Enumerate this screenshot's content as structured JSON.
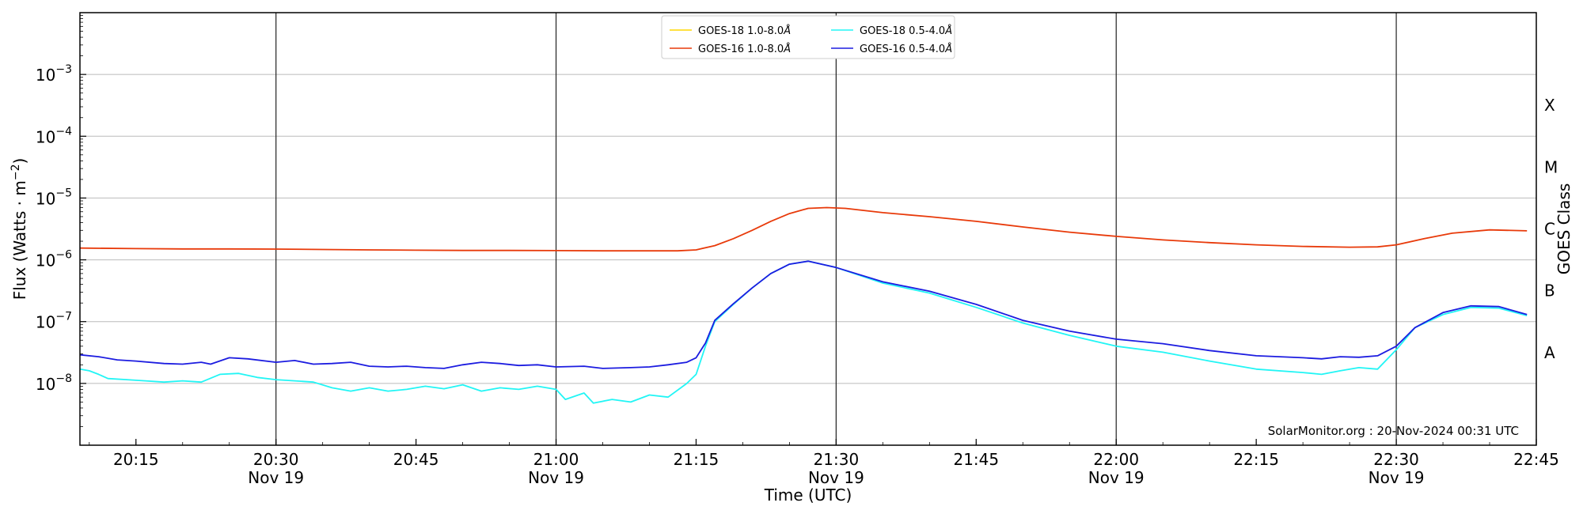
{
  "chart_data": {
    "type": "line",
    "xlabel": "Time (UTC)",
    "ylabel": "Flux (Watts · m",
    "ylabel_sup": "−2",
    "ylabel_close": ")",
    "y2label": "GOES Class",
    "yscale": "log",
    "xlim": [
      "20:09",
      "22:45"
    ],
    "ylim": [
      1e-09,
      0.01
    ],
    "grid": "horizontal",
    "legend_placement": "top-center",
    "annotation": "SolarMonitor.org : 20-Nov-2024 00:31 UTC",
    "x_ticks": [
      {
        "time": "20:15",
        "label": "20:15",
        "sublabel": ""
      },
      {
        "time": "20:30",
        "label": "20:30",
        "sublabel": "Nov 19"
      },
      {
        "time": "20:45",
        "label": "20:45",
        "sublabel": ""
      },
      {
        "time": "21:00",
        "label": "21:00",
        "sublabel": "Nov 19"
      },
      {
        "time": "21:15",
        "label": "21:15",
        "sublabel": ""
      },
      {
        "time": "21:30",
        "label": "21:30",
        "sublabel": "Nov 19"
      },
      {
        "time": "21:45",
        "label": "21:45",
        "sublabel": ""
      },
      {
        "time": "22:00",
        "label": "22:00",
        "sublabel": "Nov 19"
      },
      {
        "time": "22:15",
        "label": "22:15",
        "sublabel": ""
      },
      {
        "time": "22:30",
        "label": "22:30",
        "sublabel": "Nov 19"
      },
      {
        "time": "22:45",
        "label": "22:45",
        "sublabel": ""
      }
    ],
    "vertical_lines": [
      "20:30",
      "21:00",
      "21:30",
      "22:00",
      "22:30"
    ],
    "y_ticks": [
      {
        "value": 1e-08,
        "base": "10",
        "exp": "−8"
      },
      {
        "value": 1e-07,
        "base": "10",
        "exp": "−7"
      },
      {
        "value": 1e-06,
        "base": "10",
        "exp": "−6"
      },
      {
        "value": 1e-05,
        "base": "10",
        "exp": "−5"
      },
      {
        "value": 0.0001,
        "base": "10",
        "exp": "−4"
      },
      {
        "value": 0.001,
        "base": "10",
        "exp": "−3"
      }
    ],
    "goes_classes": [
      {
        "label": "A",
        "value": 1e-08
      },
      {
        "label": "B",
        "value": 1e-07
      },
      {
        "label": "C",
        "value": 1e-06
      },
      {
        "label": "M",
        "value": 1e-05
      },
      {
        "label": "X",
        "value": 0.0001
      }
    ],
    "legend": [
      {
        "name": "GOES-18 1.0-8.0",
        "unit": "Å",
        "color": "#ffd700"
      },
      {
        "name": "GOES-16 1.0-8.0",
        "unit": "Å",
        "color": "#e83a0a"
      },
      {
        "name": "GOES-18 0.5-4.0",
        "unit": "Å",
        "color": "#22f5f5"
      },
      {
        "name": "GOES-16 0.5-4.0",
        "unit": "Å",
        "color": "#1c1ce0"
      }
    ],
    "series": [
      {
        "name": "GOES-16 1.0-8.0",
        "color": "#e83a0a",
        "points": [
          [
            "20:09",
            1.55e-06
          ],
          [
            "20:15",
            1.52e-06
          ],
          [
            "20:20",
            1.5e-06
          ],
          [
            "20:25",
            1.5e-06
          ],
          [
            "20:30",
            1.49e-06
          ],
          [
            "20:35",
            1.47e-06
          ],
          [
            "20:40",
            1.45e-06
          ],
          [
            "20:45",
            1.43e-06
          ],
          [
            "20:50",
            1.42e-06
          ],
          [
            "20:55",
            1.42e-06
          ],
          [
            "21:00",
            1.41e-06
          ],
          [
            "21:05",
            1.4e-06
          ],
          [
            "21:10",
            1.4e-06
          ],
          [
            "21:13",
            1.4e-06
          ],
          [
            "21:15",
            1.45e-06
          ],
          [
            "21:17",
            1.7e-06
          ],
          [
            "21:19",
            2.2e-06
          ],
          [
            "21:21",
            3e-06
          ],
          [
            "21:23",
            4.2e-06
          ],
          [
            "21:25",
            5.6e-06
          ],
          [
            "21:27",
            6.8e-06
          ],
          [
            "21:29",
            7e-06
          ],
          [
            "21:31",
            6.8e-06
          ],
          [
            "21:35",
            5.8e-06
          ],
          [
            "21:40",
            5e-06
          ],
          [
            "21:45",
            4.2e-06
          ],
          [
            "21:50",
            3.4e-06
          ],
          [
            "21:55",
            2.8e-06
          ],
          [
            "22:00",
            2.4e-06
          ],
          [
            "22:05",
            2.1e-06
          ],
          [
            "22:10",
            1.9e-06
          ],
          [
            "22:15",
            1.75e-06
          ],
          [
            "22:20",
            1.65e-06
          ],
          [
            "22:25",
            1.6e-06
          ],
          [
            "22:28",
            1.62e-06
          ],
          [
            "22:30",
            1.75e-06
          ],
          [
            "22:33",
            2.2e-06
          ],
          [
            "22:36",
            2.7e-06
          ],
          [
            "22:40",
            3.05e-06
          ],
          [
            "22:44",
            2.95e-06
          ]
        ]
      },
      {
        "name": "GOES-18 0.5-4.0",
        "color": "#22f5f5",
        "points": [
          [
            "20:09",
            1.7e-08
          ],
          [
            "20:10",
            1.6e-08
          ],
          [
            "20:11",
            1.4e-08
          ],
          [
            "20:12",
            1.2e-08
          ],
          [
            "20:14",
            1.15e-08
          ],
          [
            "20:16",
            1.1e-08
          ],
          [
            "20:18",
            1.05e-08
          ],
          [
            "20:20",
            1.1e-08
          ],
          [
            "20:22",
            1.05e-08
          ],
          [
            "20:24",
            1.4e-08
          ],
          [
            "20:26",
            1.45e-08
          ],
          [
            "20:28",
            1.25e-08
          ],
          [
            "20:30",
            1.15e-08
          ],
          [
            "20:32",
            1.1e-08
          ],
          [
            "20:34",
            1.05e-08
          ],
          [
            "20:36",
            8.5e-09
          ],
          [
            "20:38",
            7.5e-09
          ],
          [
            "20:40",
            8.5e-09
          ],
          [
            "20:42",
            7.5e-09
          ],
          [
            "20:44",
            8e-09
          ],
          [
            "20:46",
            9e-09
          ],
          [
            "20:48",
            8.2e-09
          ],
          [
            "20:50",
            9.5e-09
          ],
          [
            "20:52",
            7.5e-09
          ],
          [
            "20:54",
            8.5e-09
          ],
          [
            "20:56",
            8e-09
          ],
          [
            "20:58",
            9e-09
          ],
          [
            "21:00",
            8e-09
          ],
          [
            "21:01",
            5.5e-09
          ],
          [
            "21:03",
            7e-09
          ],
          [
            "21:04",
            4.8e-09
          ],
          [
            "21:06",
            5.5e-09
          ],
          [
            "21:08",
            5e-09
          ],
          [
            "21:10",
            6.5e-09
          ],
          [
            "21:12",
            6e-09
          ],
          [
            "21:14",
            1e-08
          ],
          [
            "21:15",
            1.4e-08
          ],
          [
            "21:16",
            4e-08
          ],
          [
            "21:17",
            1e-07
          ],
          [
            "21:19",
            1.9e-07
          ],
          [
            "21:21",
            3.5e-07
          ],
          [
            "21:23",
            6e-07
          ],
          [
            "21:25",
            8.5e-07
          ],
          [
            "21:27",
            9.5e-07
          ],
          [
            "21:30",
            7.5e-07
          ],
          [
            "21:35",
            4.2e-07
          ],
          [
            "21:40",
            2.9e-07
          ],
          [
            "21:45",
            1.7e-07
          ],
          [
            "21:50",
            9.5e-08
          ],
          [
            "21:55",
            6e-08
          ],
          [
            "22:00",
            4e-08
          ],
          [
            "22:05",
            3.2e-08
          ],
          [
            "22:10",
            2.3e-08
          ],
          [
            "22:15",
            1.7e-08
          ],
          [
            "22:20",
            1.5e-08
          ],
          [
            "22:22",
            1.4e-08
          ],
          [
            "22:24",
            1.6e-08
          ],
          [
            "22:26",
            1.8e-08
          ],
          [
            "22:28",
            1.7e-08
          ],
          [
            "22:30",
            3.5e-08
          ],
          [
            "22:32",
            8e-08
          ],
          [
            "22:35",
            1.3e-07
          ],
          [
            "22:38",
            1.7e-07
          ],
          [
            "22:41",
            1.65e-07
          ],
          [
            "22:44",
            1.25e-07
          ]
        ]
      },
      {
        "name": "GOES-16 0.5-4.0",
        "color": "#1c1ce0",
        "points": [
          [
            "20:09",
            2.9e-08
          ],
          [
            "20:11",
            2.7e-08
          ],
          [
            "20:13",
            2.4e-08
          ],
          [
            "20:15",
            2.3e-08
          ],
          [
            "20:18",
            2.1e-08
          ],
          [
            "20:20",
            2.05e-08
          ],
          [
            "20:22",
            2.2e-08
          ],
          [
            "20:23",
            2.05e-08
          ],
          [
            "20:25",
            2.6e-08
          ],
          [
            "20:27",
            2.5e-08
          ],
          [
            "20:30",
            2.2e-08
          ],
          [
            "20:32",
            2.35e-08
          ],
          [
            "20:34",
            2.05e-08
          ],
          [
            "20:36",
            2.1e-08
          ],
          [
            "20:38",
            2.2e-08
          ],
          [
            "20:40",
            1.9e-08
          ],
          [
            "20:42",
            1.85e-08
          ],
          [
            "20:44",
            1.9e-08
          ],
          [
            "20:46",
            1.8e-08
          ],
          [
            "20:48",
            1.75e-08
          ],
          [
            "20:50",
            2e-08
          ],
          [
            "20:52",
            2.2e-08
          ],
          [
            "20:54",
            2.1e-08
          ],
          [
            "20:56",
            1.95e-08
          ],
          [
            "20:58",
            2e-08
          ],
          [
            "21:00",
            1.85e-08
          ],
          [
            "21:03",
            1.9e-08
          ],
          [
            "21:05",
            1.75e-08
          ],
          [
            "21:08",
            1.8e-08
          ],
          [
            "21:10",
            1.85e-08
          ],
          [
            "21:12",
            2e-08
          ],
          [
            "21:14",
            2.2e-08
          ],
          [
            "21:15",
            2.6e-08
          ],
          [
            "21:16",
            4.5e-08
          ],
          [
            "21:17",
            1.05e-07
          ],
          [
            "21:19",
            1.95e-07
          ],
          [
            "21:21",
            3.5e-07
          ],
          [
            "21:23",
            6e-07
          ],
          [
            "21:25",
            8.5e-07
          ],
          [
            "21:27",
            9.5e-07
          ],
          [
            "21:30",
            7.5e-07
          ],
          [
            "21:35",
            4.4e-07
          ],
          [
            "21:40",
            3.1e-07
          ],
          [
            "21:45",
            1.9e-07
          ],
          [
            "21:50",
            1.05e-07
          ],
          [
            "21:55",
            7e-08
          ],
          [
            "22:00",
            5.2e-08
          ],
          [
            "22:05",
            4.4e-08
          ],
          [
            "22:10",
            3.4e-08
          ],
          [
            "22:15",
            2.8e-08
          ],
          [
            "22:20",
            2.6e-08
          ],
          [
            "22:22",
            2.5e-08
          ],
          [
            "22:24",
            2.7e-08
          ],
          [
            "22:26",
            2.65e-08
          ],
          [
            "22:28",
            2.8e-08
          ],
          [
            "22:30",
            4e-08
          ],
          [
            "22:32",
            8e-08
          ],
          [
            "22:35",
            1.4e-07
          ],
          [
            "22:38",
            1.8e-07
          ],
          [
            "22:41",
            1.75e-07
          ],
          [
            "22:44",
            1.3e-07
          ]
        ]
      }
    ]
  }
}
